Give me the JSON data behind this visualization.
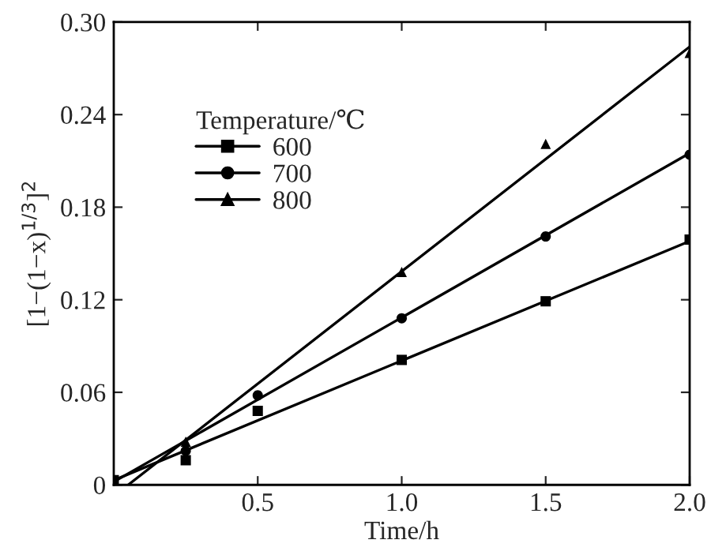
{
  "chart_data": {
    "type": "scatter",
    "xlabel": "Time/h",
    "ylabel": "[1−(1−x)$^{1/3}$]$^{2}$",
    "legend_title": "Temperature/℃",
    "xlim": [
      0,
      2.0
    ],
    "xticks": [
      0.5,
      {
        "value": 1.0,
        "label": "1.0"
      },
      1.5,
      {
        "value": 2.0,
        "label": "2.0"
      }
    ],
    "ylim": [
      0,
      0.3
    ],
    "yticks": [
      0,
      0.06,
      {
        "value": 0.12,
        "label": "0.12"
      },
      0.18,
      0.24,
      {
        "value": 0.3,
        "label": "0.30"
      }
    ],
    "grid": false,
    "legend": "top left",
    "series": [
      {
        "name": "600",
        "marker": "square",
        "color": "#000000",
        "x": [
          0,
          0.25,
          0.5,
          1.0,
          1.5,
          2.0
        ],
        "values": [
          0.003,
          0.016,
          0.048,
          0.081,
          0.119,
          0.159
        ]
      },
      {
        "name": "700",
        "marker": "circle",
        "color": "#000000",
        "x": [
          0.25,
          0.5,
          1.0,
          1.5,
          2.0
        ],
        "values": [
          0.022,
          0.058,
          0.108,
          0.161,
          0.214
        ]
      },
      {
        "name": "800",
        "marker": "triangle",
        "color": "#000000",
        "x": [
          0.25,
          1.0,
          1.5,
          2.0
        ],
        "values": [
          0.028,
          0.138,
          0.221,
          0.28
        ]
      },
      {
        "type": "line",
        "line_style": "solid",
        "color": "#000000",
        "x": [
          0,
          2.0
        ],
        "values": [
          0.003,
          0.158
        ]
      },
      {
        "type": "line",
        "line_style": "solid",
        "color": "#000000",
        "x": [
          0,
          2.0
        ],
        "values": [
          0.002,
          0.215
        ]
      },
      {
        "type": "line",
        "line_style": "solid",
        "color": "#000000",
        "x": [
          0.05,
          2.0
        ],
        "values": [
          0,
          0.284
        ]
      }
    ]
  }
}
